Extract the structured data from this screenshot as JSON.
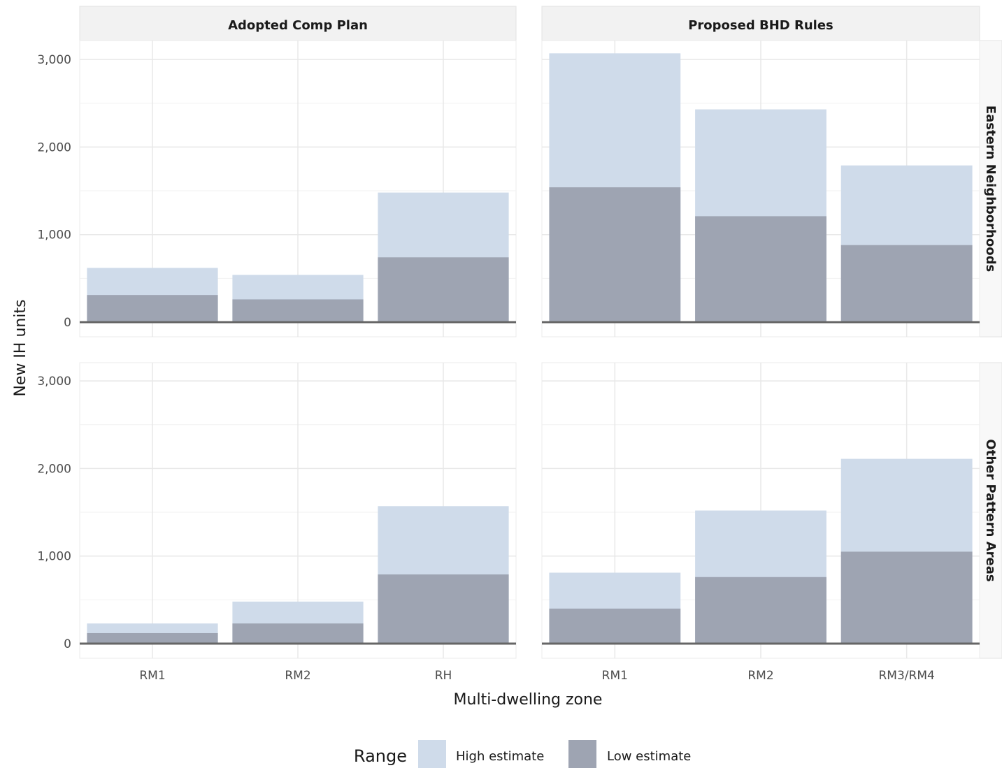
{
  "chart_data": {
    "type": "bar",
    "stacked": "overlaid",
    "ylabel": "New IH units",
    "xlabel": "Multi-dwelling zone",
    "ylim": [
      0,
      3250
    ],
    "yticks": [
      0,
      1000,
      2000,
      3000
    ],
    "ytick_labels": [
      "0",
      "1,000",
      "2,000",
      "3,000"
    ],
    "columns": [
      "Adopted Comp Plan",
      "Proposed BHD Rules"
    ],
    "rows": [
      "Eastern Neighborhoods",
      "Other Pattern Areas"
    ],
    "grid": true,
    "legend": {
      "title": "Range",
      "position": "bottom",
      "items": [
        {
          "label": "High estimate",
          "color": "#cfdbea"
        },
        {
          "label": "Low estimate",
          "color": "#9ea4b2"
        }
      ]
    },
    "panels": [
      {
        "column": "Adopted Comp Plan",
        "row": "Eastern Neighborhoods",
        "categories": [
          "RM1",
          "RM2",
          "RH"
        ],
        "high": [
          620,
          540,
          1480
        ],
        "low": [
          310,
          260,
          740
        ]
      },
      {
        "column": "Proposed BHD Rules",
        "row": "Eastern Neighborhoods",
        "categories": [
          "RM1",
          "RM2",
          "RM3/RM4"
        ],
        "high": [
          3070,
          2430,
          1790
        ],
        "low": [
          1540,
          1210,
          880
        ]
      },
      {
        "column": "Adopted Comp Plan",
        "row": "Other Pattern Areas",
        "categories": [
          "RM1",
          "RM2",
          "RH"
        ],
        "high": [
          230,
          480,
          1570
        ],
        "low": [
          120,
          230,
          790
        ]
      },
      {
        "column": "Proposed BHD Rules",
        "row": "Other Pattern Areas",
        "categories": [
          "RM1",
          "RM2",
          "RM3/RM4"
        ],
        "high": [
          810,
          1520,
          2110
        ],
        "low": [
          400,
          760,
          1050
        ]
      }
    ]
  }
}
